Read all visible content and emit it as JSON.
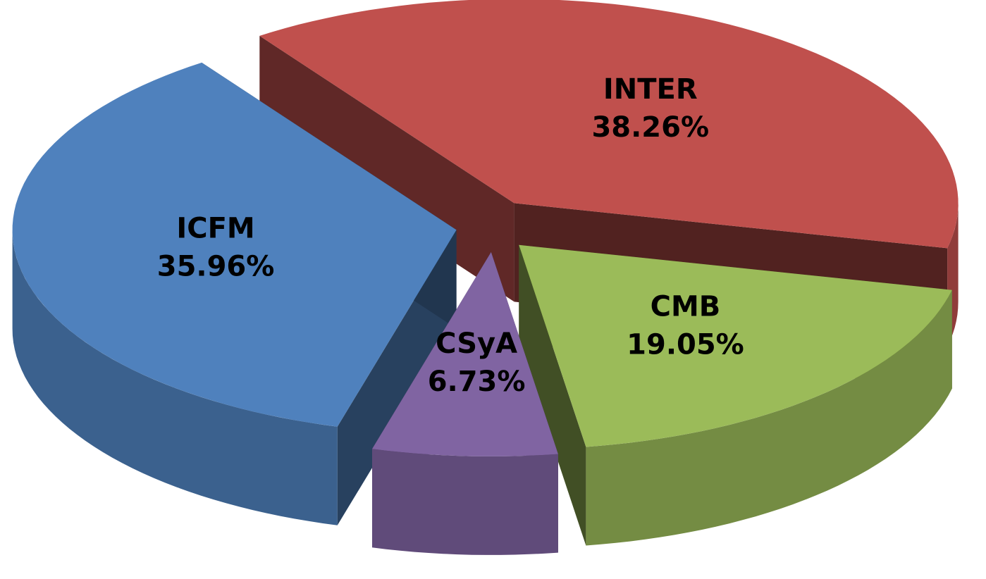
{
  "chart_data": {
    "type": "pie",
    "three_d": true,
    "exploded": true,
    "categories": [
      "INTER",
      "CMB",
      "CSyA",
      "ICFM"
    ],
    "values": [
      38.26,
      19.05,
      6.73,
      35.96
    ],
    "value_labels": [
      "38.26%",
      "19.05%",
      "6.73%",
      "35.96%"
    ],
    "colors": [
      "#c0504d",
      "#9bbb59",
      "#8064a2",
      "#4f81bd"
    ]
  }
}
